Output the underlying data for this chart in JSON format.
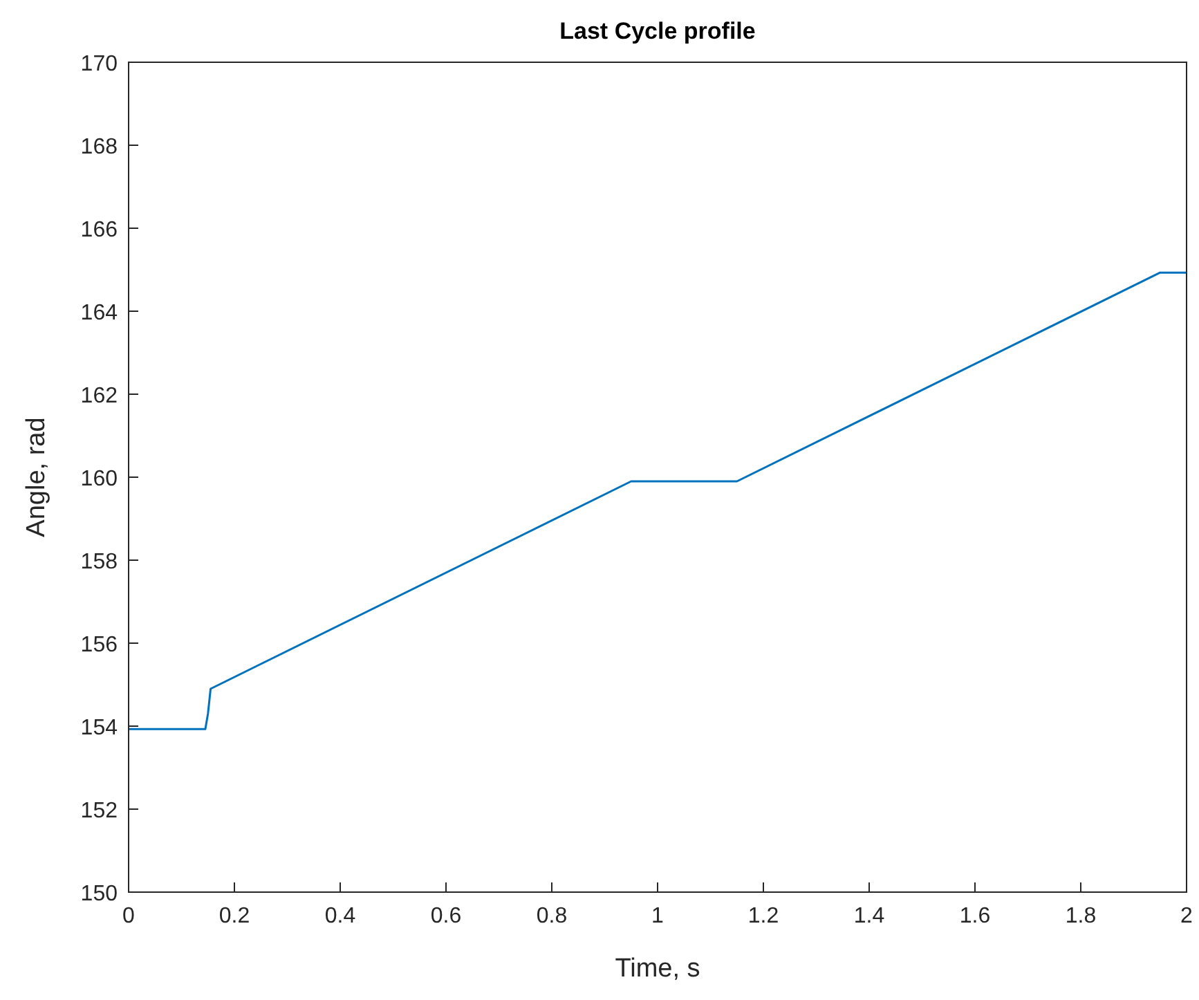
{
  "chart_data": {
    "type": "line",
    "title": "Last Cycle profile",
    "xlabel": "Time, s",
    "ylabel": "Angle, rad",
    "x": [
      0,
      0.145,
      0.15,
      0.155,
      0.95,
      1.15,
      1.95,
      2
    ],
    "series": [
      {
        "color": "#0072bd",
        "values": [
          153.93,
          153.93,
          154.3,
          154.9,
          159.9,
          159.9,
          164.93,
          164.93
        ]
      }
    ],
    "xlim": [
      0,
      2
    ],
    "xticks": [
      0,
      0.2,
      0.4,
      0.6,
      0.8,
      1,
      1.2,
      1.4,
      1.6,
      1.8,
      2
    ],
    "ylim": [
      150,
      170
    ],
    "yticks": [
      150,
      152,
      154,
      156,
      158,
      160,
      162,
      164,
      166,
      168,
      170
    ],
    "grid": false,
    "marker": "none",
    "line_style": "solid"
  }
}
